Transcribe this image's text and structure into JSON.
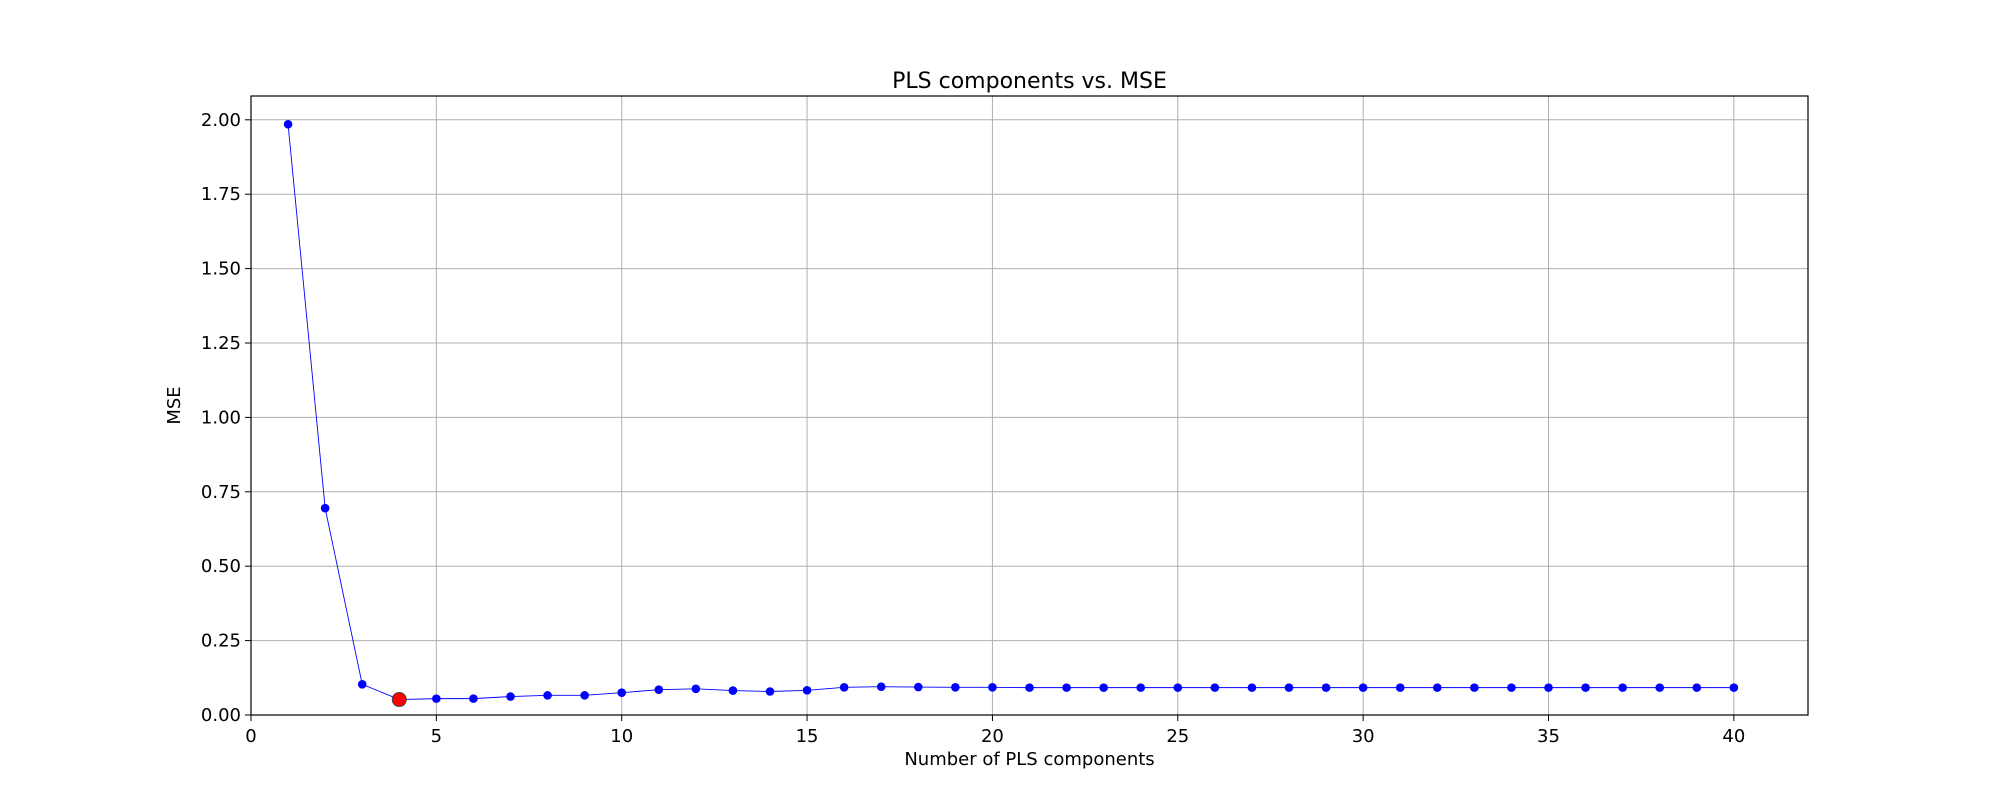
{
  "chart_data": {
    "type": "line",
    "title": "PLS components vs. MSE",
    "xlabel": "Number of PLS components",
    "ylabel": "MSE",
    "xlim": [
      0,
      42
    ],
    "ylim": [
      0,
      2.08
    ],
    "xticks": [
      0,
      5,
      10,
      15,
      20,
      25,
      30,
      35,
      40
    ],
    "xtick_labels": [
      "0",
      "5",
      "10",
      "15",
      "20",
      "25",
      "30",
      "35",
      "40"
    ],
    "yticks": [
      0,
      0.25,
      0.5,
      0.75,
      1.0,
      1.25,
      1.5,
      1.75,
      2.0
    ],
    "ytick_labels": [
      "0.00",
      "0.25",
      "0.50",
      "0.75",
      "1.00",
      "1.25",
      "1.50",
      "1.75",
      "2.00"
    ],
    "grid": true,
    "legend": "none",
    "series": [
      {
        "color": "#0000ff",
        "x": [
          1,
          2,
          3,
          4,
          5,
          6,
          7,
          8,
          9,
          10,
          11,
          12,
          13,
          14,
          15,
          16,
          17,
          18,
          19,
          20,
          21,
          22,
          23,
          24,
          25,
          26,
          27,
          28,
          29,
          30,
          31,
          32,
          33,
          34,
          35,
          36,
          37,
          38,
          39,
          40
        ],
        "values": [
          1.985,
          0.695,
          0.103,
          0.052,
          0.055,
          0.055,
          0.062,
          0.066,
          0.066,
          0.075,
          0.085,
          0.088,
          0.082,
          0.079,
          0.083,
          0.093,
          0.095,
          0.094,
          0.093,
          0.093,
          0.092,
          0.092,
          0.092,
          0.092,
          0.092,
          0.092,
          0.092,
          0.092,
          0.092,
          0.092,
          0.092,
          0.092,
          0.092,
          0.092,
          0.092,
          0.092,
          0.092,
          0.092,
          0.092,
          0.092
        ]
      }
    ],
    "highlight": {
      "x": 4,
      "y": 0.052,
      "color": "#ff0000"
    }
  }
}
